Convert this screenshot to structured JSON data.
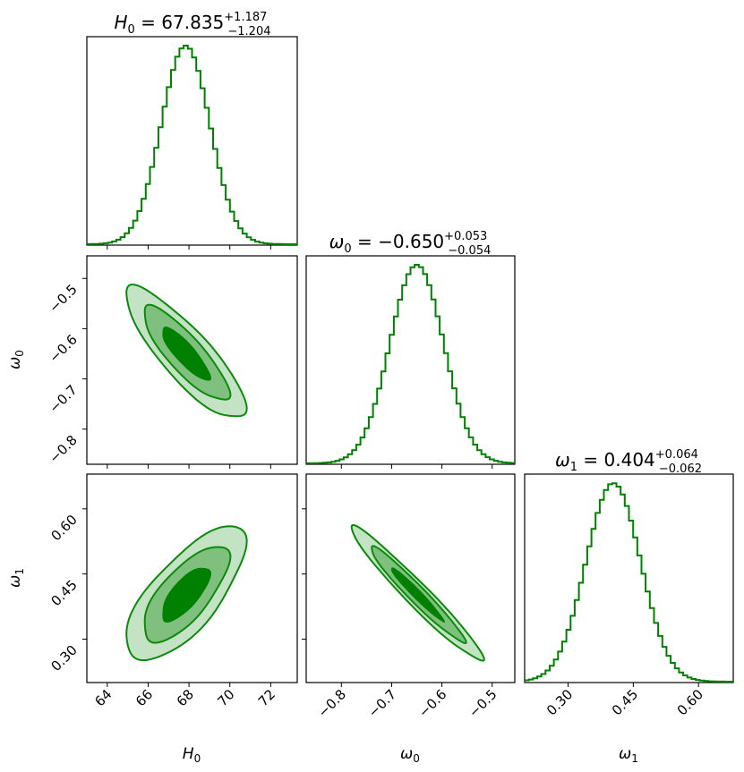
{
  "chart_data": {
    "type": "corner",
    "color": "#008000",
    "contour_colors": [
      "#c4e3c4",
      "#7fc07f",
      "#008000"
    ],
    "parameters": [
      {
        "key": "H0",
        "symbol": "H",
        "sub": "0",
        "median": "67.835",
        "plus": "+1.187",
        "minus": "−1.204",
        "mean": 67.835,
        "sigma": 1.195,
        "range": [
          63,
          73.3
        ],
        "ticks": [
          64,
          66,
          68,
          70,
          72
        ],
        "tick_labels": [
          "64",
          "66",
          "68",
          "70",
          "72"
        ]
      },
      {
        "key": "w0",
        "symbol": "ω",
        "sub": "0",
        "median": "−0.650",
        "plus": "+0.053",
        "minus": "−0.054",
        "mean": -0.65,
        "sigma": 0.0535,
        "range": [
          -0.87,
          -0.455
        ],
        "ticks": [
          -0.8,
          -0.7,
          -0.6,
          -0.5
        ],
        "tick_labels": [
          "−0.8",
          "−0.7",
          "−0.6",
          "−0.5"
        ]
      },
      {
        "key": "w1",
        "symbol": "ω",
        "sub": "1",
        "median": "0.404",
        "plus": "+0.064",
        "minus": "−0.062",
        "mean": 0.404,
        "sigma": 0.063,
        "range": [
          0.2,
          0.68
        ],
        "ticks": [
          0.3,
          0.45,
          0.6
        ],
        "tick_labels": [
          "0.30",
          "0.45",
          "0.60"
        ]
      }
    ],
    "correlations": {
      "H0_w0": -0.85,
      "H0_w1": 0.72,
      "w0_w1": -0.97
    }
  }
}
